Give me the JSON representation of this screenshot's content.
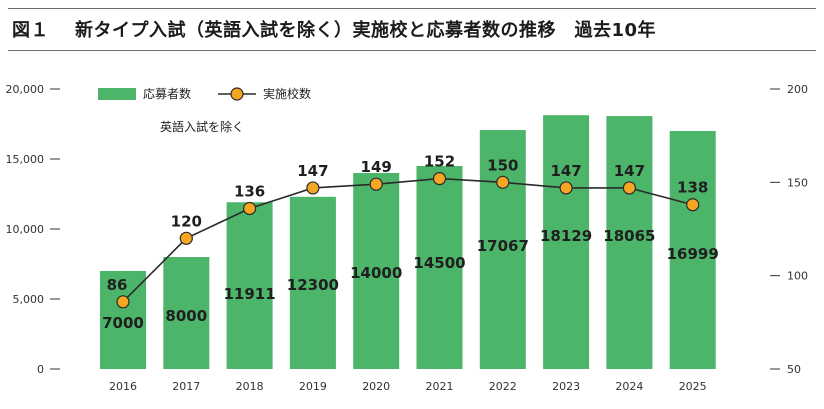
{
  "header": {
    "figure_number": "図１",
    "title": "新タイプ入試（英語入試を除く）実施校と応募者数の推移　過去10年"
  },
  "chart_data": {
    "type": "bar",
    "title": "新タイプ入試（英語入試を除く）実施校と応募者数の推移　過去10年",
    "annotation": "英語入試を除く",
    "categories": [
      "2016",
      "2017",
      "2018",
      "2019",
      "2020",
      "2021",
      "2022",
      "2023",
      "2024",
      "2025"
    ],
    "series": [
      {
        "name": "応募者数",
        "type": "bar",
        "axis": "left",
        "color": "#4cb56a",
        "values": [
          7000,
          8000,
          11911,
          12300,
          14000,
          14500,
          17067,
          18129,
          18065,
          16999
        ]
      },
      {
        "name": "実施校数",
        "type": "line",
        "axis": "right",
        "color": "#f5a623",
        "line_color": "#2a2a2a",
        "values": [
          86,
          120,
          136,
          147,
          149,
          152,
          150,
          147,
          147,
          138
        ]
      }
    ],
    "left_axis": {
      "ylim": [
        0,
        20000
      ],
      "ticks": [
        0,
        5000,
        10000,
        15000,
        20000
      ],
      "tick_labels": [
        "0",
        "5,000",
        "10,000",
        "15,000",
        "20,000"
      ]
    },
    "right_axis": {
      "ylim": [
        50,
        200
      ],
      "ticks": [
        50,
        100,
        150,
        200
      ],
      "tick_labels": [
        "50",
        "100",
        "150",
        "200"
      ]
    },
    "legend_placement": "top-left",
    "grid": false
  }
}
